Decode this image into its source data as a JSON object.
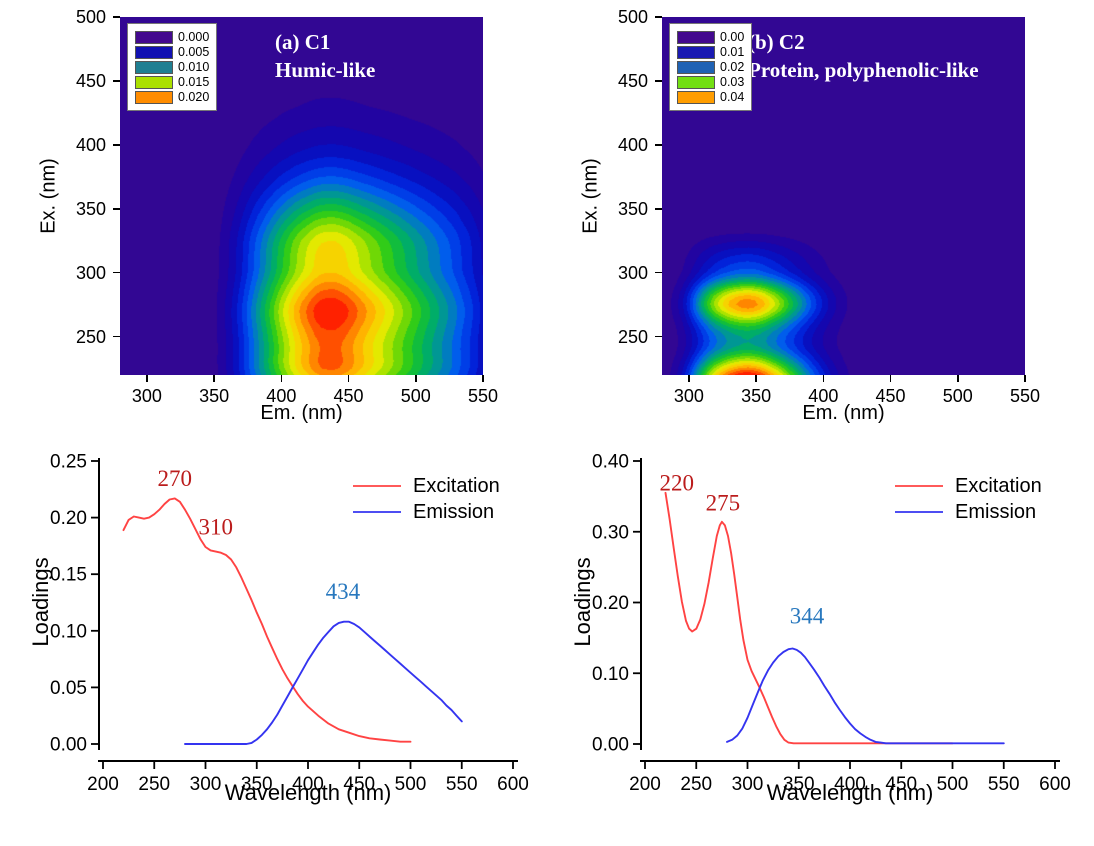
{
  "colors": {
    "excitation_line": "#ff4343",
    "emission_line": "#3434f0",
    "peak_label_red": "#bb1c1c",
    "peak_label_blue": "#2878be",
    "contour_background": "#3a098c",
    "axis": "#000000",
    "panel_title": "#ffffff"
  },
  "chart_data": [
    {
      "id": "c1_eem",
      "type": "heatmap",
      "title_line1": "(a) C1",
      "title_line2": "Humic-like",
      "xlabel": "Em. (nm)",
      "ylabel": "Ex. (nm)",
      "x_range": [
        280,
        550
      ],
      "y_range": [
        220,
        500
      ],
      "x_ticks": [
        300,
        350,
        400,
        450,
        500,
        550
      ],
      "y_ticks": [
        250,
        300,
        350,
        400,
        450,
        500
      ],
      "value_model": "outer_product_of_loadings",
      "loadings_ref": "c1_loadings",
      "vmax": 0.0235,
      "n_bands": 20,
      "legend_levels": [
        {
          "label": "0.000",
          "color": "#43098e"
        },
        {
          "label": "0.005",
          "color": "#1111b2"
        },
        {
          "label": "0.010",
          "color": "#1f7f92"
        },
        {
          "label": "0.015",
          "color": "#abe000"
        },
        {
          "label": "0.020",
          "color": "#ff8c00"
        }
      ]
    },
    {
      "id": "c2_eem",
      "type": "heatmap",
      "title_line1": "(b) C2",
      "title_line2": "Protein, polyphenolic-like",
      "xlabel": "Em. (nm)",
      "ylabel": "Ex. (nm)",
      "x_range": [
        280,
        550
      ],
      "y_range": [
        220,
        500
      ],
      "x_ticks": [
        300,
        350,
        400,
        450,
        500,
        550
      ],
      "y_ticks": [
        250,
        300,
        350,
        400,
        450,
        500
      ],
      "value_model": "outer_product_of_loadings",
      "loadings_ref": "c2_loadings",
      "vmax": 0.048,
      "n_bands": 20,
      "legend_levels": [
        {
          "label": "0.00",
          "color": "#43098e"
        },
        {
          "label": "0.01",
          "color": "#1a1ab2"
        },
        {
          "label": "0.02",
          "color": "#1f62b4"
        },
        {
          "label": "0.03",
          "color": "#72df12"
        },
        {
          "label": "0.04",
          "color": "#ff9d00"
        }
      ]
    },
    {
      "id": "c1_loadings",
      "type": "line",
      "xlabel": "Wavelength (nm)",
      "ylabel": "Loadings",
      "x_range": [
        200,
        600
      ],
      "y_range": [
        0,
        0.25
      ],
      "x_ticks": [
        200,
        250,
        300,
        350,
        400,
        450,
        500,
        550,
        600
      ],
      "y_ticks": [
        0,
        0.05,
        0.1,
        0.15,
        0.2,
        0.25
      ],
      "y_tick_decimals": 2,
      "legend_position": "top-right-inside",
      "series": [
        {
          "name": "Excitation",
          "color": "#ff4343",
          "x": [
            220,
            225,
            230,
            235,
            240,
            245,
            250,
            255,
            260,
            265,
            270,
            275,
            280,
            285,
            290,
            295,
            300,
            305,
            310,
            315,
            320,
            325,
            330,
            335,
            340,
            345,
            350,
            355,
            360,
            365,
            370,
            375,
            380,
            385,
            390,
            395,
            400,
            410,
            420,
            430,
            440,
            450,
            460,
            470,
            480,
            490,
            500
          ],
          "y": [
            0.189,
            0.198,
            0.201,
            0.2,
            0.199,
            0.2,
            0.203,
            0.207,
            0.212,
            0.216,
            0.217,
            0.214,
            0.207,
            0.199,
            0.19,
            0.181,
            0.174,
            0.171,
            0.17,
            0.169,
            0.167,
            0.163,
            0.156,
            0.147,
            0.137,
            0.127,
            0.116,
            0.106,
            0.095,
            0.085,
            0.075,
            0.066,
            0.058,
            0.051,
            0.044,
            0.038,
            0.033,
            0.025,
            0.018,
            0.013,
            0.01,
            0.007,
            0.005,
            0.004,
            0.003,
            0.002,
            0.002
          ]
        },
        {
          "name": "Emission",
          "color": "#3434f0",
          "x": [
            280,
            290,
            300,
            310,
            320,
            330,
            340,
            345,
            350,
            355,
            360,
            365,
            370,
            375,
            380,
            385,
            390,
            395,
            400,
            405,
            410,
            415,
            420,
            425,
            430,
            435,
            440,
            445,
            450,
            455,
            460,
            465,
            470,
            475,
            480,
            485,
            490,
            495,
            500,
            505,
            510,
            515,
            520,
            525,
            530,
            535,
            540,
            545,
            550
          ],
          "y": [
            0.0,
            0.0,
            0.0,
            0.0,
            0.0,
            0.0,
            0.0,
            0.001,
            0.004,
            0.008,
            0.013,
            0.019,
            0.026,
            0.034,
            0.042,
            0.05,
            0.058,
            0.066,
            0.074,
            0.081,
            0.088,
            0.094,
            0.099,
            0.104,
            0.107,
            0.108,
            0.108,
            0.106,
            0.103,
            0.099,
            0.095,
            0.091,
            0.087,
            0.083,
            0.079,
            0.075,
            0.071,
            0.067,
            0.063,
            0.059,
            0.055,
            0.051,
            0.047,
            0.043,
            0.039,
            0.034,
            0.03,
            0.025,
            0.02
          ]
        }
      ],
      "annotations": [
        {
          "text": "270",
          "x": 270,
          "y": 0.228,
          "color": "#bb1c1c"
        },
        {
          "text": "310",
          "x": 310,
          "y": 0.185,
          "color": "#bb1c1c"
        },
        {
          "text": "434",
          "x": 434,
          "y": 0.128,
          "color": "#2878be"
        }
      ]
    },
    {
      "id": "c2_loadings",
      "type": "line",
      "xlabel": "Wavelength (nm)",
      "ylabel": "Loadings",
      "x_range": [
        200,
        600
      ],
      "y_range": [
        0,
        0.4
      ],
      "x_ticks": [
        200,
        250,
        300,
        350,
        400,
        450,
        500,
        550,
        600
      ],
      "y_ticks": [
        0,
        0.1,
        0.2,
        0.3,
        0.4
      ],
      "y_tick_decimals": 2,
      "legend_position": "top-right-inside",
      "series": [
        {
          "name": "Excitation",
          "color": "#ff4343",
          "x": [
            220,
            224,
            228,
            232,
            236,
            240,
            243,
            246,
            250,
            254,
            258,
            262,
            266,
            270,
            273,
            275,
            278,
            281,
            284,
            287,
            290,
            293,
            296,
            300,
            304,
            308,
            312,
            316,
            320,
            324,
            328,
            332,
            336,
            340,
            345,
            350,
            360,
            380,
            400,
            420,
            440,
            460,
            480,
            500
          ],
          "y": [
            0.355,
            0.318,
            0.277,
            0.237,
            0.201,
            0.174,
            0.163,
            0.159,
            0.163,
            0.176,
            0.198,
            0.228,
            0.262,
            0.294,
            0.309,
            0.314,
            0.309,
            0.294,
            0.27,
            0.24,
            0.207,
            0.175,
            0.147,
            0.119,
            0.103,
            0.091,
            0.079,
            0.066,
            0.052,
            0.038,
            0.025,
            0.014,
            0.006,
            0.002,
            0.001,
            0.001,
            0.001,
            0.001,
            0.001,
            0.001,
            0.001,
            0.001,
            0.001,
            0.001
          ]
        },
        {
          "name": "Emission",
          "color": "#3434f0",
          "x": [
            280,
            285,
            290,
            295,
            300,
            305,
            310,
            315,
            320,
            325,
            330,
            335,
            340,
            344,
            348,
            352,
            356,
            360,
            365,
            370,
            375,
            380,
            385,
            390,
            395,
            400,
            405,
            410,
            415,
            420,
            425,
            430,
            435,
            440,
            450,
            460,
            470,
            480,
            490,
            500,
            510,
            520,
            530,
            540,
            550
          ],
          "y": [
            0.003,
            0.006,
            0.012,
            0.022,
            0.037,
            0.055,
            0.073,
            0.09,
            0.104,
            0.115,
            0.124,
            0.13,
            0.134,
            0.135,
            0.133,
            0.129,
            0.123,
            0.115,
            0.105,
            0.094,
            0.082,
            0.071,
            0.059,
            0.048,
            0.038,
            0.029,
            0.021,
            0.015,
            0.01,
            0.006,
            0.003,
            0.002,
            0.001,
            0.001,
            0.001,
            0.001,
            0.001,
            0.001,
            0.001,
            0.001,
            0.001,
            0.001,
            0.001,
            0.001,
            0.001
          ]
        }
      ],
      "annotations": [
        {
          "text": "220",
          "x": 231,
          "y": 0.358,
          "color": "#bb1c1c"
        },
        {
          "text": "275",
          "x": 276,
          "y": 0.33,
          "color": "#bb1c1c"
        },
        {
          "text": "344",
          "x": 358,
          "y": 0.17,
          "color": "#2878be"
        }
      ]
    }
  ]
}
